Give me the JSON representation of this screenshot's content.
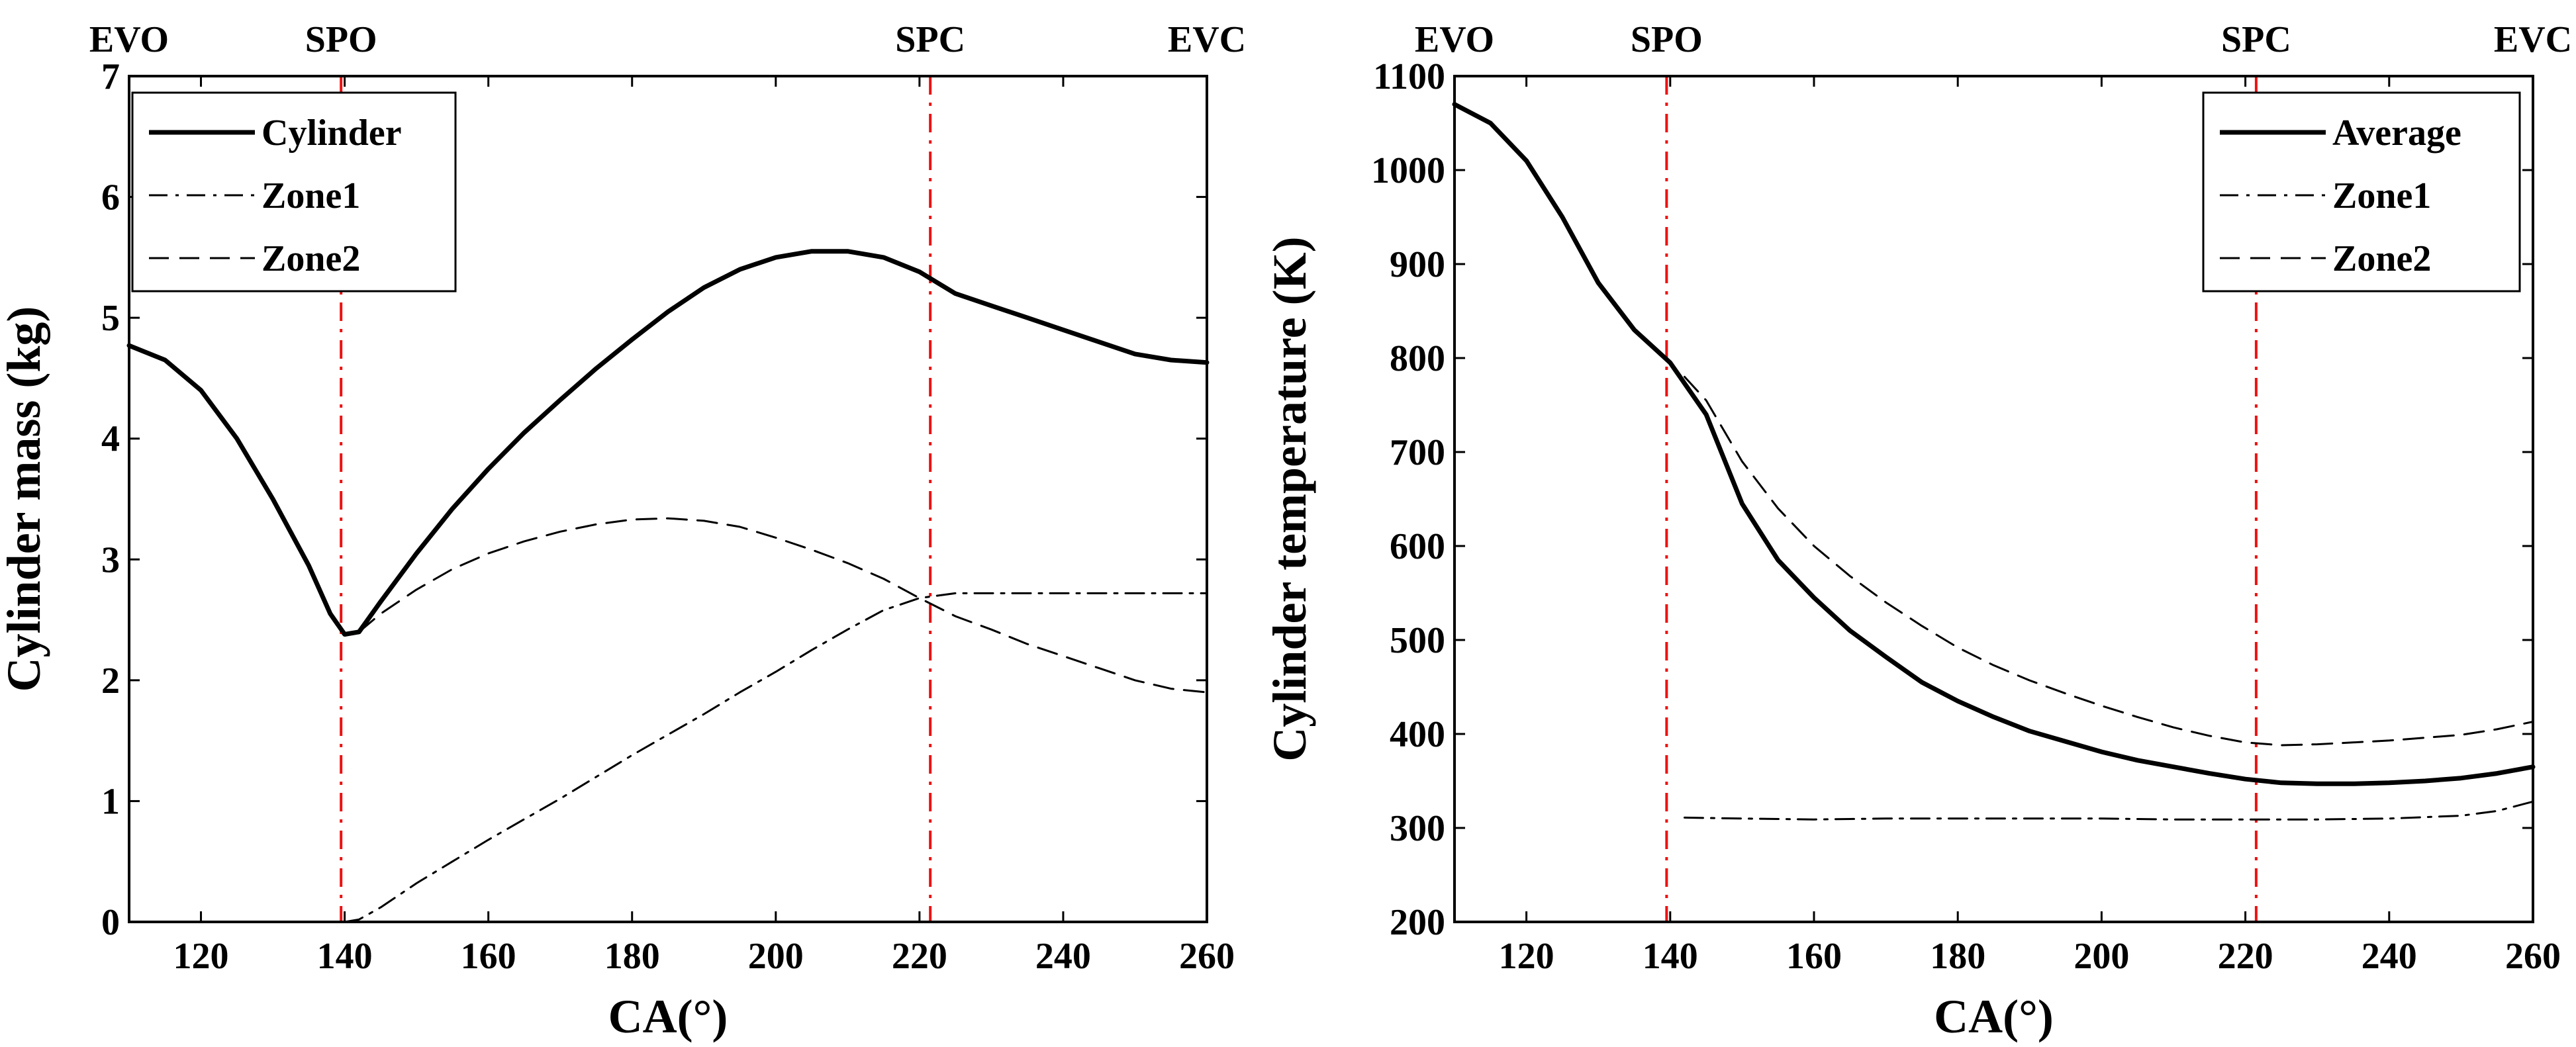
{
  "chart_data": [
    {
      "type": "line",
      "xlabel": "CA(°)",
      "ylabel": "Cylinder mass (kg)",
      "xlim": [
        110,
        260
      ],
      "ylim": [
        0,
        7
      ],
      "xticks": [
        120,
        140,
        160,
        180,
        200,
        220,
        240,
        260
      ],
      "yticks": [
        0,
        1,
        2,
        3,
        4,
        5,
        6,
        7
      ],
      "grid": false,
      "legend_position": "top-left",
      "event_markers": [
        {
          "label": "SPO",
          "x": 139.5
        },
        {
          "label": "SPC",
          "x": 221.5
        }
      ],
      "top_labels": [
        {
          "label": "EVO",
          "x": 110
        },
        {
          "label": "SPO",
          "x": 139.5
        },
        {
          "label": "SPC",
          "x": 221.5
        },
        {
          "label": "EVC",
          "x": 260
        }
      ],
      "series": [
        {
          "name": "Cylinder",
          "style": "solid",
          "x": [
            110,
            115,
            120,
            125,
            130,
            135,
            138,
            140,
            142,
            145,
            150,
            155,
            160,
            165,
            170,
            175,
            180,
            185,
            190,
            195,
            200,
            205,
            210,
            215,
            220,
            225,
            230,
            235,
            240,
            245,
            250,
            255,
            260
          ],
          "y": [
            4.77,
            4.65,
            4.4,
            4.0,
            3.5,
            2.95,
            2.55,
            2.38,
            2.4,
            2.65,
            3.05,
            3.42,
            3.75,
            4.05,
            4.32,
            4.58,
            4.82,
            5.05,
            5.25,
            5.4,
            5.5,
            5.55,
            5.55,
            5.5,
            5.38,
            5.2,
            5.1,
            5.0,
            4.9,
            4.8,
            4.7,
            4.65,
            4.63
          ]
        },
        {
          "name": "Zone1",
          "style": "dashdot",
          "x": [
            140,
            142,
            145,
            150,
            155,
            160,
            165,
            170,
            175,
            180,
            185,
            190,
            195,
            200,
            205,
            210,
            215,
            220,
            225,
            230,
            240,
            250,
            260
          ],
          "y": [
            0.0,
            0.02,
            0.12,
            0.32,
            0.5,
            0.68,
            0.85,
            1.02,
            1.2,
            1.38,
            1.55,
            1.72,
            1.9,
            2.07,
            2.25,
            2.42,
            2.58,
            2.68,
            2.72,
            2.72,
            2.72,
            2.72,
            2.72
          ]
        },
        {
          "name": "Zone2",
          "style": "dashed",
          "x": [
            142,
            145,
            150,
            155,
            160,
            165,
            170,
            175,
            180,
            185,
            190,
            195,
            200,
            205,
            210,
            215,
            220,
            225,
            230,
            235,
            240,
            245,
            250,
            255,
            260
          ],
          "y": [
            2.4,
            2.55,
            2.75,
            2.92,
            3.05,
            3.15,
            3.23,
            3.29,
            3.33,
            3.34,
            3.32,
            3.27,
            3.18,
            3.08,
            2.97,
            2.84,
            2.68,
            2.53,
            2.42,
            2.3,
            2.2,
            2.1,
            2.0,
            1.93,
            1.9
          ]
        }
      ]
    },
    {
      "type": "line",
      "xlabel": "CA(°)",
      "ylabel": "Cylinder temperature (K)",
      "xlim": [
        110,
        260
      ],
      "ylim": [
        200,
        1100
      ],
      "xticks": [
        120,
        140,
        160,
        180,
        200,
        220,
        240,
        260
      ],
      "yticks": [
        200,
        300,
        400,
        500,
        600,
        700,
        800,
        900,
        1000,
        1100
      ],
      "grid": false,
      "legend_position": "top-right",
      "event_markers": [
        {
          "label": "SPO",
          "x": 139.5
        },
        {
          "label": "SPC",
          "x": 221.5
        }
      ],
      "top_labels": [
        {
          "label": "EVO",
          "x": 110
        },
        {
          "label": "SPO",
          "x": 139.5
        },
        {
          "label": "SPC",
          "x": 221.5
        },
        {
          "label": "EVC",
          "x": 260
        }
      ],
      "series": [
        {
          "name": "Average",
          "style": "solid",
          "x": [
            110,
            115,
            120,
            125,
            130,
            135,
            140,
            145,
            150,
            155,
            160,
            165,
            170,
            175,
            180,
            185,
            190,
            195,
            200,
            205,
            210,
            215,
            220,
            225,
            230,
            235,
            240,
            245,
            250,
            255,
            260
          ],
          "y": [
            1070,
            1050,
            1010,
            950,
            880,
            830,
            795,
            740,
            645,
            585,
            545,
            510,
            482,
            455,
            435,
            418,
            403,
            392,
            381,
            372,
            365,
            358,
            352,
            348,
            347,
            347,
            348,
            350,
            353,
            358,
            365
          ]
        },
        {
          "name": "Zone1",
          "style": "dashdot",
          "x": [
            142,
            150,
            160,
            170,
            180,
            190,
            200,
            210,
            220,
            230,
            240,
            250,
            255,
            260
          ],
          "y": [
            311,
            310,
            309,
            310,
            310,
            310,
            310,
            309,
            309,
            309,
            310,
            313,
            318,
            328
          ]
        },
        {
          "name": "Zone2",
          "style": "dashed",
          "x": [
            142,
            145,
            150,
            155,
            160,
            165,
            170,
            175,
            180,
            185,
            190,
            195,
            200,
            205,
            210,
            215,
            220,
            225,
            230,
            235,
            240,
            245,
            250,
            255,
            260
          ],
          "y": [
            780,
            755,
            690,
            640,
            600,
            568,
            540,
            515,
            492,
            473,
            457,
            443,
            430,
            418,
            407,
            398,
            391,
            388,
            389,
            391,
            393,
            396,
            399,
            405,
            413
          ]
        }
      ]
    }
  ]
}
